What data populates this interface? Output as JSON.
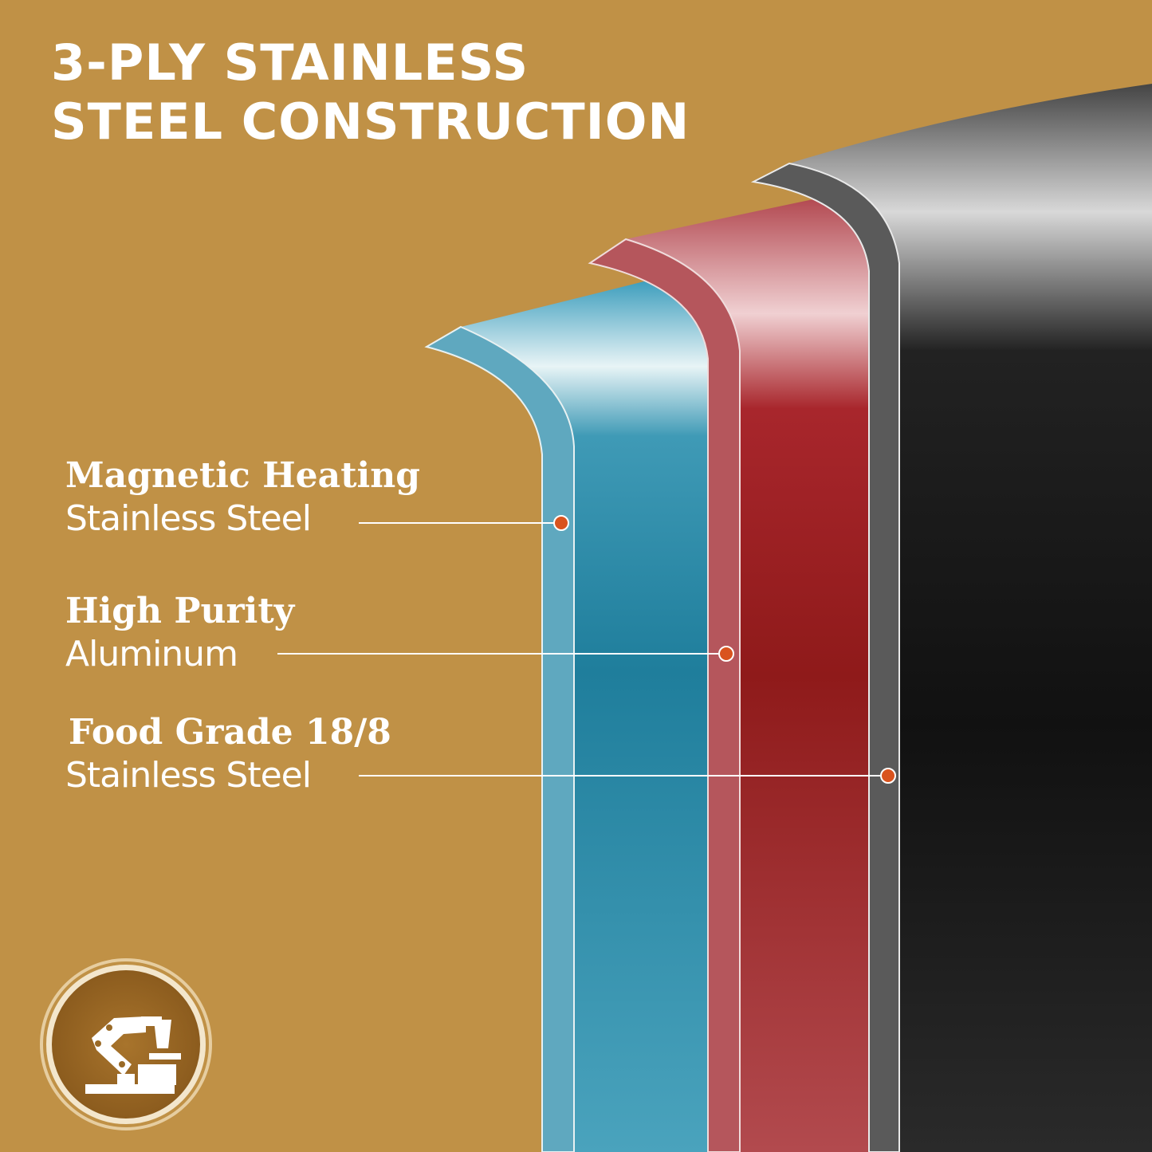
{
  "title": {
    "line1": "3-PLY STAINLESS",
    "line2": "STEEL CONSTRUCTION"
  },
  "layers": [
    {
      "line1": "Magnetic Heating",
      "line2": "Stainless Steel",
      "color": "#2a86a3"
    },
    {
      "line1": "High Purity",
      "line2": "Aluminum",
      "color": "#9b1e1e"
    },
    {
      "line1": "Food Grade 18/8",
      "line2": "Stainless Steel",
      "color": "#1a1a1a"
    }
  ],
  "colors": {
    "background": "#c09146",
    "marker": "#d9531e"
  },
  "badge": {
    "icon": "robot-arm-icon"
  }
}
